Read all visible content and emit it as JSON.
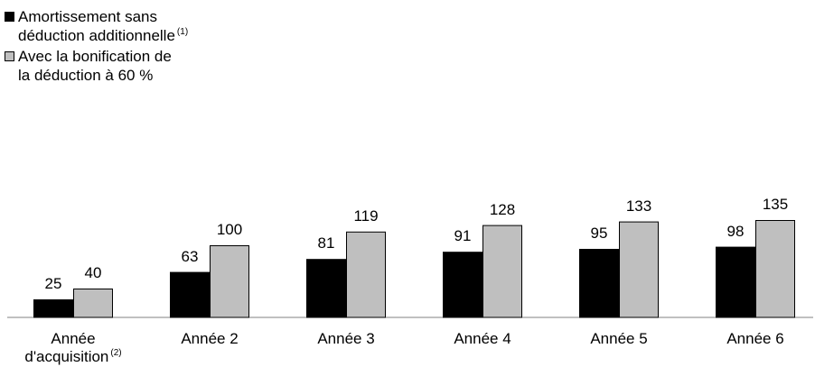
{
  "chart_data": {
    "type": "bar",
    "title": "",
    "xlabel": "",
    "ylabel": "",
    "ylim": [
      0,
      140
    ],
    "grid": false,
    "legend_placement": "top-left",
    "categories": [
      {
        "label": "Année\nd'acquisition",
        "superscript": "(2)"
      },
      {
        "label": "Année 2",
        "superscript": ""
      },
      {
        "label": "Année 3",
        "superscript": ""
      },
      {
        "label": "Année 4",
        "superscript": ""
      },
      {
        "label": "Année 5",
        "superscript": ""
      },
      {
        "label": "Année 6",
        "superscript": ""
      }
    ],
    "series": [
      {
        "name": "Amortissement sans\ndéduction additionnelle",
        "name_superscript": "(1)",
        "color": "#000000",
        "values": [
          25,
          63,
          81,
          91,
          95,
          98
        ]
      },
      {
        "name": "Avec la bonification de\nla déduction à 60 %",
        "name_superscript": "",
        "color": "#bfbfbf",
        "values": [
          40,
          100,
          119,
          128,
          133,
          135
        ]
      }
    ]
  }
}
